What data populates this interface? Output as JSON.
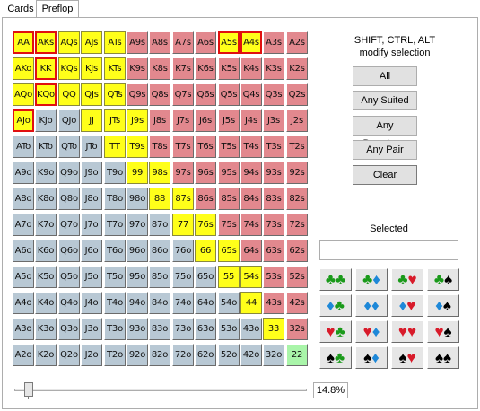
{
  "tabs": [
    {
      "label": "Cards",
      "active": false
    },
    {
      "label": "Preflop",
      "active": true
    }
  ],
  "ranks": [
    "A",
    "K",
    "Q",
    "J",
    "T",
    "9",
    "8",
    "7",
    "6",
    "5",
    "4",
    "3",
    "2"
  ],
  "range": {
    "selected": [
      "AA",
      "AKs",
      "AQs",
      "AJs",
      "ATs",
      "A5s",
      "A4s",
      "AKo",
      "KK",
      "KQs",
      "KJs",
      "KTs",
      "AQo",
      "KQo",
      "QQ",
      "QJs",
      "QTs",
      "AJo",
      "JJ",
      "JTs",
      "J9s",
      "TT",
      "T9s",
      "99",
      "98s",
      "88",
      "87s",
      "77",
      "76s",
      "66",
      "65s",
      "55",
      "54s",
      "44",
      "33"
    ],
    "highlighted": [
      "AA",
      "AKs",
      "A5s",
      "A4s",
      "KK",
      "KQo",
      "AJo"
    ],
    "green": [
      "22"
    ]
  },
  "hint": {
    "line1": "SHIFT, CTRL, ALT",
    "line2": "modify selection"
  },
  "buttons": {
    "all": "All",
    "any_suited": "Any Suited",
    "any_broadway": "Any Broadway",
    "any_pair": "Any Pair",
    "clear": "Clear"
  },
  "selected_label": "Selected",
  "selected_value": "",
  "suit_combos": [
    [
      "♣",
      "♣"
    ],
    [
      "♣",
      "♦"
    ],
    [
      "♣",
      "♥"
    ],
    [
      "♣",
      "♠"
    ],
    [
      "♦",
      "♣"
    ],
    [
      "♦",
      "♦"
    ],
    [
      "♦",
      "♥"
    ],
    [
      "♦",
      "♠"
    ],
    [
      "♥",
      "♣"
    ],
    [
      "♥",
      "♦"
    ],
    [
      "♥",
      "♥"
    ],
    [
      "♥",
      "♠"
    ],
    [
      "♠",
      "♣"
    ],
    [
      "♠",
      "♦"
    ],
    [
      "♠",
      "♥"
    ],
    [
      "♠",
      "♠"
    ]
  ],
  "suit_colors": {
    "♣": "#1a9a1a",
    "♦": "#1e88d8",
    "♥": "#d81b2a",
    "♠": "#000000"
  },
  "percent_text": "14.8%",
  "slider_fraction": 0.148
}
